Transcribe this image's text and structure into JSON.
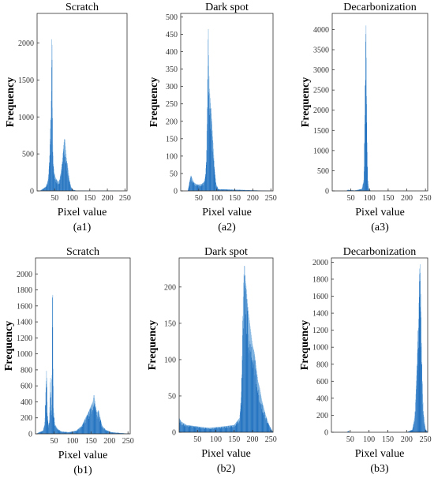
{
  "chart_data": [
    {
      "id": "a1",
      "type": "bar",
      "title": "Scratch",
      "xlabel": "Pixel value",
      "ylabel": "Frequency",
      "sublabel": "(a1)",
      "xlim": [
        0,
        256
      ],
      "ylim": [
        0,
        2400
      ],
      "xticks": [
        50,
        100,
        150,
        200,
        250
      ],
      "yticks": [
        0,
        500,
        1000,
        1500,
        2000
      ],
      "peaks": [
        [
          8,
          0
        ],
        [
          15,
          25
        ],
        [
          20,
          40
        ],
        [
          25,
          60
        ],
        [
          30,
          120
        ],
        [
          33,
          250
        ],
        [
          36,
          520
        ],
        [
          38,
          950
        ],
        [
          40,
          1000
        ],
        [
          42,
          2400
        ],
        [
          44,
          700
        ],
        [
          46,
          400
        ],
        [
          48,
          260
        ],
        [
          52,
          180
        ],
        [
          56,
          150
        ],
        [
          60,
          120
        ],
        [
          64,
          150
        ],
        [
          68,
          260
        ],
        [
          72,
          420
        ],
        [
          75,
          600
        ],
        [
          78,
          720
        ],
        [
          81,
          580
        ],
        [
          84,
          420
        ],
        [
          88,
          300
        ],
        [
          92,
          150
        ],
        [
          96,
          60
        ],
        [
          100,
          20
        ],
        [
          110,
          5
        ],
        [
          256,
          0
        ]
      ]
    },
    {
      "id": "a2",
      "type": "bar",
      "title": "Dark spot",
      "xlabel": "Pixel value",
      "ylabel": "Frequency",
      "sublabel": "(a2)",
      "xlim": [
        0,
        256
      ],
      "ylim": [
        0,
        510
      ],
      "xticks": [
        50,
        100,
        150,
        200,
        250
      ],
      "yticks": [
        0,
        50,
        100,
        150,
        200,
        250,
        300,
        350,
        400,
        450,
        500
      ],
      "peaks": [
        [
          20,
          0
        ],
        [
          24,
          25
        ],
        [
          28,
          45
        ],
        [
          32,
          35
        ],
        [
          36,
          25
        ],
        [
          42,
          20
        ],
        [
          50,
          18
        ],
        [
          58,
          20
        ],
        [
          64,
          25
        ],
        [
          68,
          40
        ],
        [
          71,
          90
        ],
        [
          73,
          200
        ],
        [
          75,
          360
        ],
        [
          76,
          510
        ],
        [
          77,
          420
        ],
        [
          79,
          300
        ],
        [
          82,
          260
        ],
        [
          86,
          200
        ],
        [
          90,
          130
        ],
        [
          94,
          60
        ],
        [
          98,
          20
        ],
        [
          104,
          5
        ],
        [
          256,
          0
        ]
      ]
    },
    {
      "id": "a3",
      "type": "bar",
      "title": "Decarbonization",
      "xlabel": "Pixel value",
      "ylabel": "Frequency",
      "sublabel": "(a3)",
      "xlim": [
        0,
        256
      ],
      "ylim": [
        0,
        4400
      ],
      "xticks": [
        50,
        100,
        150,
        200,
        250
      ],
      "yticks": [
        0,
        500,
        1000,
        1500,
        2000,
        2500,
        3000,
        3500,
        4000
      ],
      "peaks": [
        [
          38,
          0
        ],
        [
          42,
          30
        ],
        [
          48,
          20
        ],
        [
          60,
          10
        ],
        [
          80,
          50
        ],
        [
          85,
          300
        ],
        [
          87,
          1500
        ],
        [
          89,
          3000
        ],
        [
          90,
          4400
        ],
        [
          91,
          3800
        ],
        [
          92,
          2800
        ],
        [
          93,
          1500
        ],
        [
          95,
          300
        ],
        [
          98,
          40
        ],
        [
          104,
          0
        ],
        [
          256,
          0
        ]
      ]
    },
    {
      "id": "b1",
      "type": "bar",
      "title": "Scratch",
      "xlabel": "Pixel value",
      "ylabel": "Frequency",
      "sublabel": "(b1)",
      "xlim": [
        0,
        256
      ],
      "ylim": [
        0,
        2200
      ],
      "xticks": [
        50,
        100,
        150,
        200,
        250
      ],
      "yticks": [
        0,
        200,
        400,
        600,
        800,
        1000,
        1200,
        1400,
        1600,
        1800,
        2000
      ],
      "peaks": [
        [
          2,
          0
        ],
        [
          10,
          20
        ],
        [
          20,
          40
        ],
        [
          25,
          120
        ],
        [
          28,
          600
        ],
        [
          30,
          850
        ],
        [
          32,
          250
        ],
        [
          35,
          100
        ],
        [
          38,
          180
        ],
        [
          40,
          800
        ],
        [
          42,
          400
        ],
        [
          44,
          250
        ],
        [
          46,
          2200
        ],
        [
          48,
          350
        ],
        [
          52,
          120
        ],
        [
          60,
          60
        ],
        [
          70,
          30
        ],
        [
          90,
          20
        ],
        [
          110,
          40
        ],
        [
          125,
          100
        ],
        [
          135,
          200
        ],
        [
          142,
          260
        ],
        [
          150,
          350
        ],
        [
          155,
          400
        ],
        [
          158,
          500
        ],
        [
          162,
          360
        ],
        [
          166,
          260
        ],
        [
          170,
          300
        ],
        [
          175,
          200
        ],
        [
          180,
          100
        ],
        [
          190,
          50
        ],
        [
          205,
          20
        ],
        [
          230,
          10
        ],
        [
          256,
          0
        ]
      ]
    },
    {
      "id": "b2",
      "type": "bar",
      "title": "Dark spot",
      "xlabel": "Pixel value",
      "ylabel": "Frequency",
      "sublabel": "(b2)",
      "xlim": [
        0,
        256
      ],
      "ylim": [
        0,
        240
      ],
      "xticks": [
        50,
        100,
        150,
        200,
        250
      ],
      "yticks": [
        0,
        50,
        100,
        150,
        200
      ],
      "peaks": [
        [
          0,
          20
        ],
        [
          5,
          15
        ],
        [
          20,
          10
        ],
        [
          50,
          8
        ],
        [
          80,
          6
        ],
        [
          120,
          8
        ],
        [
          150,
          10
        ],
        [
          165,
          20
        ],
        [
          170,
          60
        ],
        [
          172,
          120
        ],
        [
          175,
          200
        ],
        [
          178,
          235
        ],
        [
          180,
          210
        ],
        [
          183,
          200
        ],
        [
          186,
          180
        ],
        [
          190,
          160
        ],
        [
          195,
          140
        ],
        [
          200,
          120
        ],
        [
          205,
          110
        ],
        [
          210,
          90
        ],
        [
          215,
          70
        ],
        [
          220,
          60
        ],
        [
          225,
          45
        ],
        [
          235,
          25
        ],
        [
          245,
          10
        ],
        [
          256,
          0
        ]
      ]
    },
    {
      "id": "b3",
      "type": "bar",
      "title": "Decarbonization",
      "xlabel": "Pixel value",
      "ylabel": "Frequency",
      "sublabel": "(b3)",
      "xlim": [
        0,
        256
      ],
      "ylim": [
        0,
        2050
      ],
      "xticks": [
        50,
        100,
        150,
        200,
        250
      ],
      "yticks": [
        0,
        200,
        400,
        600,
        800,
        1000,
        1200,
        1400,
        1600,
        1800,
        2000
      ],
      "peaks": [
        [
          40,
          0
        ],
        [
          45,
          15
        ],
        [
          50,
          0
        ],
        [
          200,
          0
        ],
        [
          215,
          30
        ],
        [
          222,
          200
        ],
        [
          226,
          600
        ],
        [
          229,
          1000
        ],
        [
          232,
          1400
        ],
        [
          234,
          1900
        ],
        [
          236,
          2000
        ],
        [
          238,
          1500
        ],
        [
          240,
          900
        ],
        [
          242,
          500
        ],
        [
          245,
          200
        ],
        [
          250,
          40
        ],
        [
          256,
          0
        ]
      ]
    }
  ],
  "colors": {
    "bar": "#1f6fbe",
    "bar_light": "#7fb3e0",
    "axis": "#333333"
  }
}
